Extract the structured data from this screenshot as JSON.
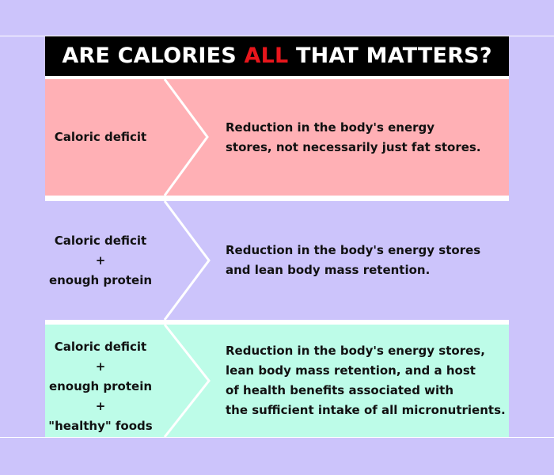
{
  "title": {
    "before": "ARE CALORIES ",
    "highlight": "ALL",
    "after": " THAT MATTERS?",
    "highlight_color": "#e8161c"
  },
  "colors": {
    "background": "#ccc4fb",
    "row1": "#ffb0b5",
    "row2": "#ccc4fb",
    "row3": "#bdfce8",
    "title_bar": "#000000"
  },
  "rows": [
    {
      "label_lines": [
        "Caloric deficit"
      ],
      "desc_lines": [
        "Reduction in the body's energy",
        "stores, not necessarily just fat stores."
      ]
    },
    {
      "label_lines": [
        "Caloric deficit",
        "+",
        "enough protein"
      ],
      "desc_lines": [
        "Reduction in the body's energy stores",
        "and lean body mass retention."
      ]
    },
    {
      "label_lines": [
        "Caloric deficit",
        "+",
        "enough protein",
        "+",
        "\"healthy\" foods"
      ],
      "desc_lines": [
        "Reduction in the body's energy stores,",
        "lean body mass retention, and a host",
        "of health benefits associated with",
        "the sufficient intake of all micronutrients."
      ]
    }
  ]
}
